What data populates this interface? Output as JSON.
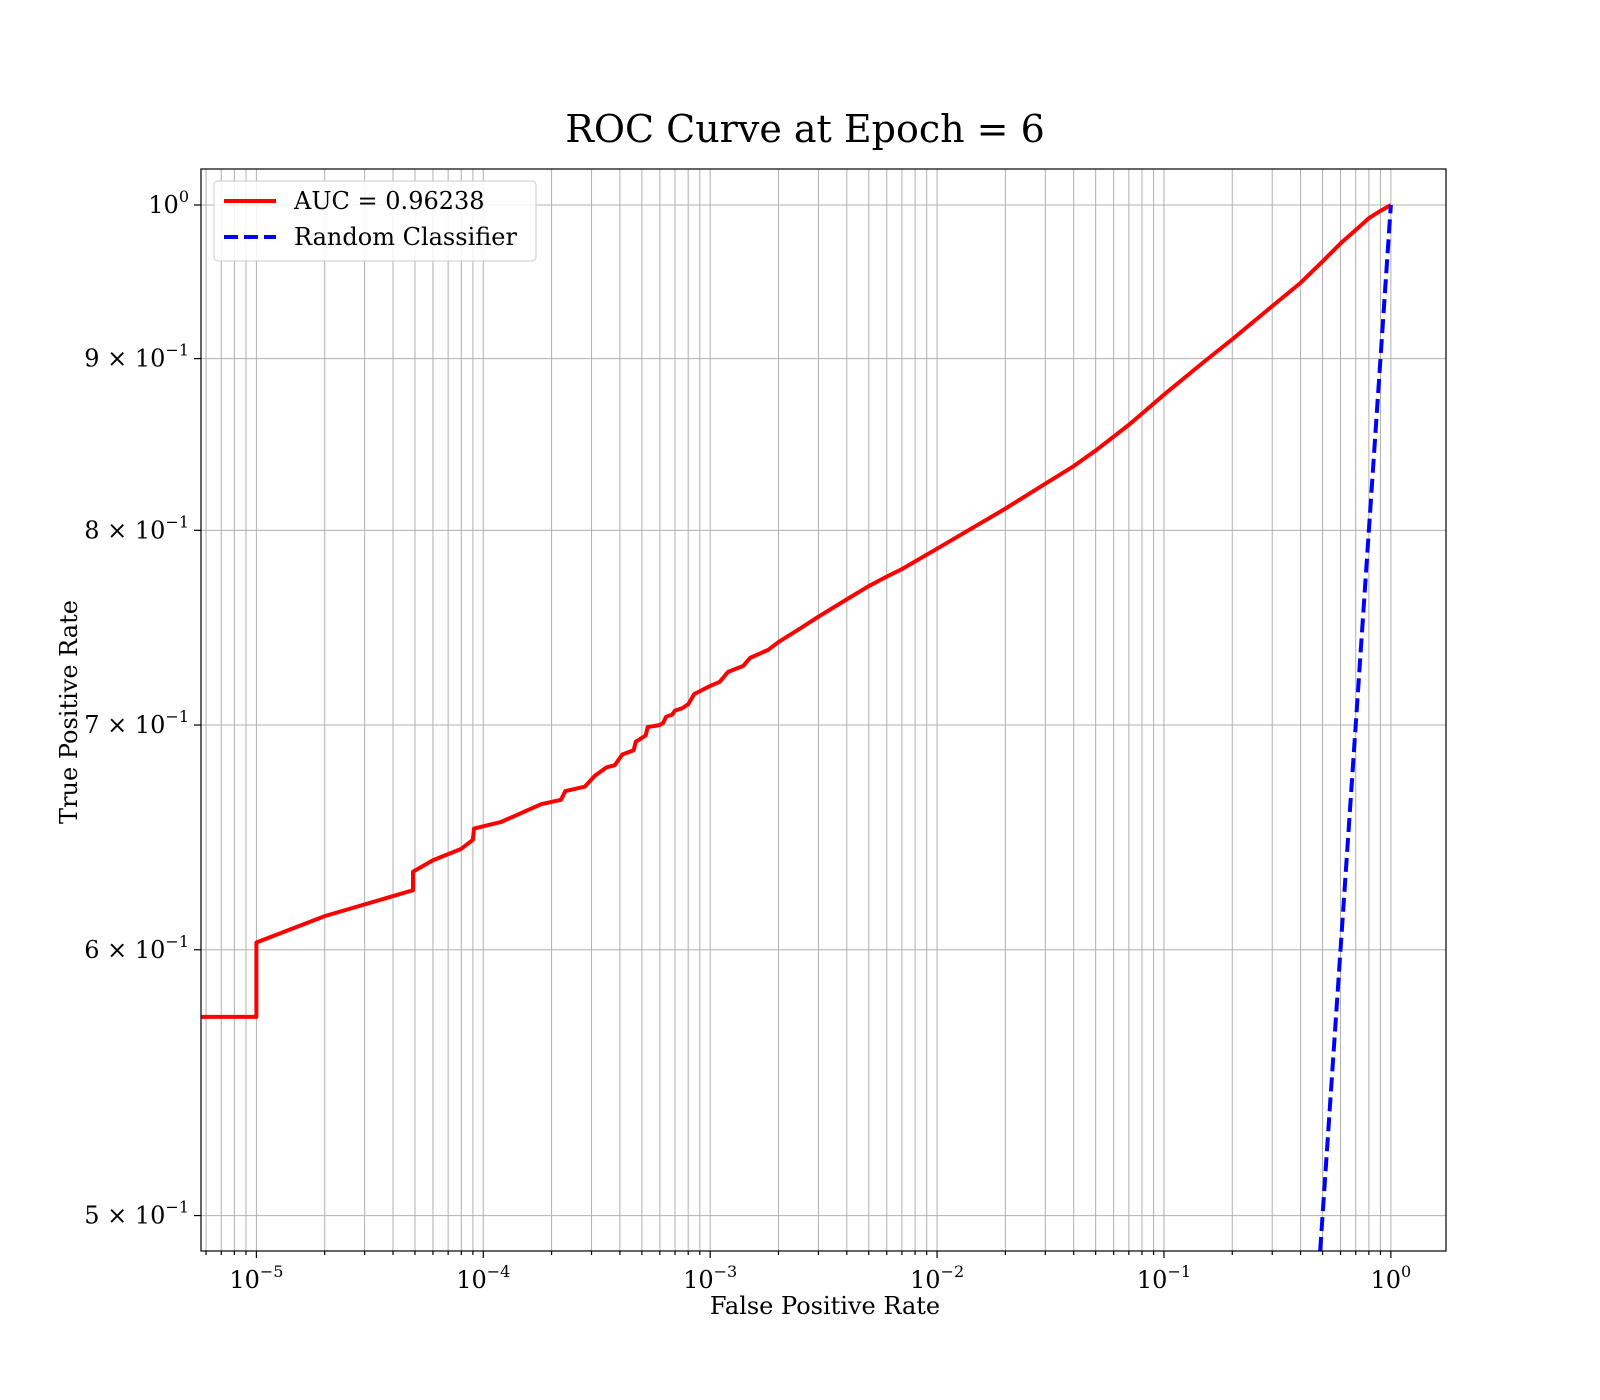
{
  "chart_data": {
    "type": "line",
    "title": "ROC Curve at Epoch = 6",
    "xlabel": "False Positive Rate",
    "ylabel": "True Positive Rate",
    "xscale": "log",
    "yscale": "log",
    "xlim": [
      5.7e-06,
      1.75
    ],
    "ylim": [
      0.488,
      1.025
    ],
    "grid": true,
    "grid_minor": true,
    "legend_position": "top-left",
    "x_ticks": [
      {
        "value": 1e-05,
        "base": "10",
        "exp": "−5"
      },
      {
        "value": 0.0001,
        "base": "10",
        "exp": "−4"
      },
      {
        "value": 0.001,
        "base": "10",
        "exp": "−3"
      },
      {
        "value": 0.01,
        "base": "10",
        "exp": "−2"
      },
      {
        "value": 0.1,
        "base": "10",
        "exp": "−1"
      },
      {
        "value": 1,
        "base": "10",
        "exp": "0"
      }
    ],
    "y_ticks": [
      {
        "value": 0.5,
        "mant": "5 × 10",
        "exp": "−1"
      },
      {
        "value": 0.6,
        "mant": "6 × 10",
        "exp": "−1"
      },
      {
        "value": 0.7,
        "mant": "7 × 10",
        "exp": "−1"
      },
      {
        "value": 0.8,
        "mant": "8 × 10",
        "exp": "−1"
      },
      {
        "value": 0.9,
        "mant": "9 × 10",
        "exp": "−1"
      },
      {
        "value": 1,
        "mant": "10",
        "exp": "0"
      }
    ],
    "series": [
      {
        "name": "AUC = 0.96238",
        "color": "#ff0000",
        "style": "solid",
        "points": [
          [
            5.7e-06,
            0.573
          ],
          [
            1e-05,
            0.573
          ],
          [
            1e-05,
            0.603
          ],
          [
            2e-05,
            0.614
          ],
          [
            4.9e-05,
            0.625
          ],
          [
            4.9e-05,
            0.633
          ],
          [
            6e-05,
            0.638
          ],
          [
            8e-05,
            0.643
          ],
          [
            9e-05,
            0.647
          ],
          [
            9.1e-05,
            0.652
          ],
          [
            0.00012,
            0.655
          ],
          [
            0.00018,
            0.663
          ],
          [
            0.00022,
            0.665
          ],
          [
            0.00023,
            0.669
          ],
          [
            0.00028,
            0.671
          ],
          [
            0.00031,
            0.676
          ],
          [
            0.00035,
            0.68
          ],
          [
            0.00038,
            0.681
          ],
          [
            0.00041,
            0.686
          ],
          [
            0.00046,
            0.688
          ],
          [
            0.00047,
            0.692
          ],
          [
            0.00052,
            0.695
          ],
          [
            0.00053,
            0.699
          ],
          [
            0.0006,
            0.7
          ],
          [
            0.00062,
            0.701
          ],
          [
            0.00064,
            0.704
          ],
          [
            0.00068,
            0.705
          ],
          [
            0.0007,
            0.707
          ],
          [
            0.00075,
            0.708
          ],
          [
            0.0008,
            0.71
          ],
          [
            0.00085,
            0.715
          ],
          [
            0.001,
            0.719
          ],
          [
            0.0011,
            0.721
          ],
          [
            0.0012,
            0.726
          ],
          [
            0.0014,
            0.729
          ],
          [
            0.0015,
            0.733
          ],
          [
            0.0018,
            0.737
          ],
          [
            0.002,
            0.741
          ],
          [
            0.0025,
            0.748
          ],
          [
            0.003,
            0.754
          ],
          [
            0.004,
            0.763
          ],
          [
            0.005,
            0.77
          ],
          [
            0.006,
            0.775
          ],
          [
            0.007,
            0.779
          ],
          [
            0.01,
            0.79
          ],
          [
            0.02,
            0.812
          ],
          [
            0.03,
            0.826
          ],
          [
            0.04,
            0.836
          ],
          [
            0.05,
            0.845
          ],
          [
            0.07,
            0.86
          ],
          [
            0.1,
            0.878
          ],
          [
            0.15,
            0.898
          ],
          [
            0.2,
            0.912
          ],
          [
            0.3,
            0.933
          ],
          [
            0.4,
            0.948
          ],
          [
            0.5,
            0.962
          ],
          [
            0.6,
            0.974
          ],
          [
            0.7,
            0.983
          ],
          [
            0.8,
            0.991
          ],
          [
            0.9,
            0.996
          ],
          [
            1,
            1
          ]
        ]
      },
      {
        "name": "Random Classifier",
        "color": "#0000ff",
        "style": "dashed",
        "points": [
          [
            0.488,
            0.488
          ],
          [
            1,
            1
          ]
        ]
      }
    ]
  }
}
